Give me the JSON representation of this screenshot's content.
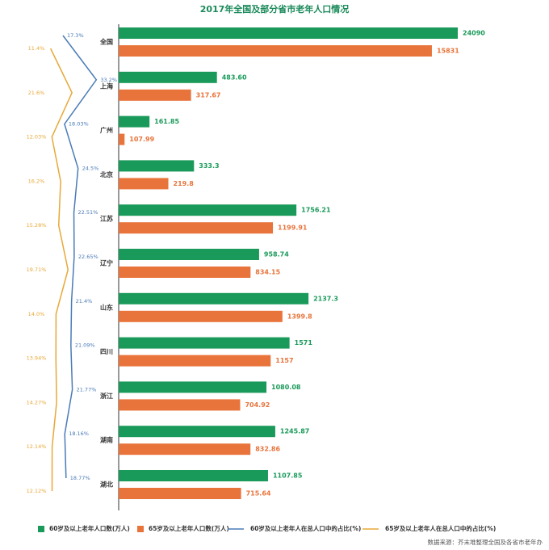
{
  "chart_data": {
    "type": "bar",
    "orientation": "horizontal",
    "title": "2017年全国及部分省市老年人口情况",
    "categories": [
      "全国",
      "上海",
      "广州",
      "北京",
      "江苏",
      "辽宁",
      "山东",
      "四川",
      "浙江",
      "湖南",
      "湖北"
    ],
    "xscale": "log",
    "series": [
      {
        "name": "60岁及以上老年人口数(万人)",
        "type": "bar",
        "color": "#1a9a5a",
        "values": [
          24090,
          483.6,
          161.85,
          333.3,
          1756.21,
          958.74,
          2137.3,
          1571,
          1080.08,
          1245.87,
          1107.85
        ],
        "value_labels": [
          "24090",
          "483.60",
          "161.85",
          "333.3",
          "1756.21",
          "958.74",
          "2137.3",
          "1571",
          "1080.08",
          "1245.87",
          "1107.85"
        ]
      },
      {
        "name": "65岁及以上老年人口数(万人)",
        "type": "bar",
        "color": "#e8743b",
        "values": [
          15831,
          317.67,
          107.99,
          219.8,
          1199.91,
          834.15,
          1399.8,
          1157,
          704.92,
          832.86,
          715.64
        ],
        "value_labels": [
          "15831",
          "317.67",
          "107.99",
          "219.8",
          "1199.91",
          "834.15",
          "1399.8",
          "1157",
          "704.92",
          "832.86",
          "715.64"
        ]
      },
      {
        "name": "60岁及以上老年人在总人口中的占比(%)",
        "type": "line",
        "color": "#4a7bb7",
        "values": [
          17.3,
          33.2,
          18.03,
          24.5,
          22.51,
          22.65,
          21.4,
          21.09,
          21.77,
          18.16,
          18.77
        ],
        "value_labels": [
          "17.3%",
          "33.2%",
          "18.03%",
          "24.5%",
          "22.51%",
          "22.65%",
          "21.4%",
          "21.09%",
          "21.77%",
          "18.16%",
          "18.77%"
        ]
      },
      {
        "name": "65岁及以上老年人在总人口中的占比(%)",
        "type": "line",
        "color": "#e8a838",
        "values": [
          11.4,
          21.6,
          12.03,
          16.2,
          15.28,
          19.71,
          14.0,
          13.94,
          14.27,
          12.14,
          12.12
        ],
        "value_labels": [
          "11.4%",
          "21.6%",
          "12.03%",
          "16.2%",
          "15.28%",
          "19.71%",
          "14.0%",
          "13.94%",
          "14.27%",
          "12.14%",
          "12.12%"
        ]
      }
    ],
    "source": "数据来源：芥末堆整理全国及各省市老年办"
  }
}
